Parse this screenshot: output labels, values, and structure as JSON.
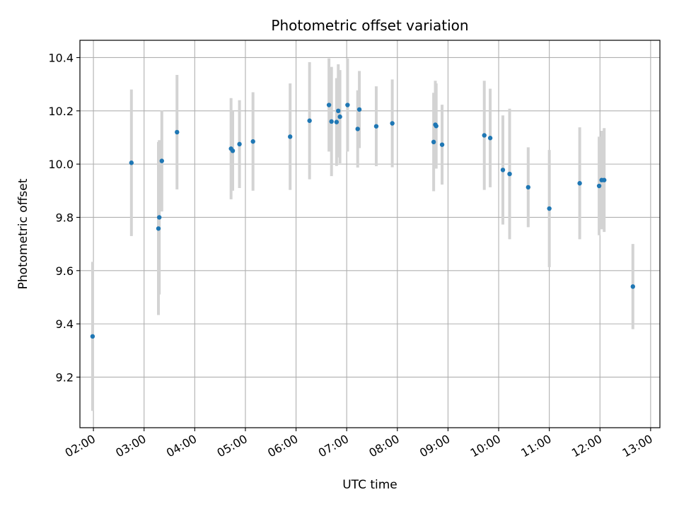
{
  "chart_data": {
    "type": "scatter",
    "title": "Photometric offset variation",
    "xlabel": "UTC time",
    "ylabel": "Photometric offset",
    "xlim": [
      "01:44",
      "13:11"
    ],
    "ylim": [
      9.01,
      10.465
    ],
    "grid": true,
    "x_ticks": [
      "02:00",
      "03:00",
      "04:00",
      "05:00",
      "06:00",
      "07:00",
      "08:00",
      "09:00",
      "10:00",
      "11:00",
      "12:00",
      "13:00"
    ],
    "y_ticks": [
      "9.2",
      "9.4",
      "9.6",
      "9.8",
      "10.0",
      "10.2",
      "10.4"
    ],
    "colors": {
      "point": "#1f77b4",
      "errorbar": "#d3d3d3",
      "grid": "#b0b0b0"
    },
    "points": [
      {
        "t": "01:59",
        "y": 9.353,
        "err": 0.28
      },
      {
        "t": "02:45",
        "y": 10.005,
        "err": 0.275
      },
      {
        "t": "03:17",
        "y": 9.758,
        "err": 0.325
      },
      {
        "t": "03:18",
        "y": 9.8,
        "err": 0.29
      },
      {
        "t": "03:21",
        "y": 10.012,
        "err": 0.19
      },
      {
        "t": "03:39",
        "y": 10.12,
        "err": 0.215
      },
      {
        "t": "04:43",
        "y": 10.058,
        "err": 0.19
      },
      {
        "t": "04:45",
        "y": 10.05,
        "err": 0.15
      },
      {
        "t": "04:53",
        "y": 10.075,
        "err": 0.165
      },
      {
        "t": "05:09",
        "y": 10.085,
        "err": 0.185
      },
      {
        "t": "05:53",
        "y": 10.103,
        "err": 0.2
      },
      {
        "t": "06:16",
        "y": 10.163,
        "err": 0.22
      },
      {
        "t": "06:39",
        "y": 10.222,
        "err": 0.175
      },
      {
        "t": "06:42",
        "y": 10.16,
        "err": 0.205
      },
      {
        "t": "06:48",
        "y": 10.158,
        "err": 0.165
      },
      {
        "t": "06:50",
        "y": 10.2,
        "err": 0.175
      },
      {
        "t": "06:52",
        "y": 10.178,
        "err": 0.175
      },
      {
        "t": "07:01",
        "y": 10.222,
        "err": 0.175
      },
      {
        "t": "07:13",
        "y": 10.132,
        "err": 0.145
      },
      {
        "t": "07:15",
        "y": 10.205,
        "err": 0.145
      },
      {
        "t": "07:35",
        "y": 10.142,
        "err": 0.15
      },
      {
        "t": "07:54",
        "y": 10.153,
        "err": 0.165
      },
      {
        "t": "08:43",
        "y": 10.083,
        "err": 0.185
      },
      {
        "t": "08:45",
        "y": 10.148,
        "err": 0.165
      },
      {
        "t": "08:46",
        "y": 10.143,
        "err": 0.16
      },
      {
        "t": "08:53",
        "y": 10.073,
        "err": 0.15
      },
      {
        "t": "09:43",
        "y": 10.108,
        "err": 0.205
      },
      {
        "t": "09:50",
        "y": 10.098,
        "err": 0.185
      },
      {
        "t": "10:05",
        "y": 9.978,
        "err": 0.205
      },
      {
        "t": "10:13",
        "y": 9.963,
        "err": 0.245
      },
      {
        "t": "10:35",
        "y": 9.913,
        "err": 0.15
      },
      {
        "t": "11:00",
        "y": 9.833,
        "err": 0.22
      },
      {
        "t": "11:36",
        "y": 9.928,
        "err": 0.21
      },
      {
        "t": "11:59",
        "y": 9.918,
        "err": 0.185
      },
      {
        "t": "12:02",
        "y": 9.94,
        "err": 0.185
      },
      {
        "t": "12:05",
        "y": 9.94,
        "err": 0.195
      },
      {
        "t": "12:39",
        "y": 9.54,
        "err": 0.16
      }
    ]
  }
}
